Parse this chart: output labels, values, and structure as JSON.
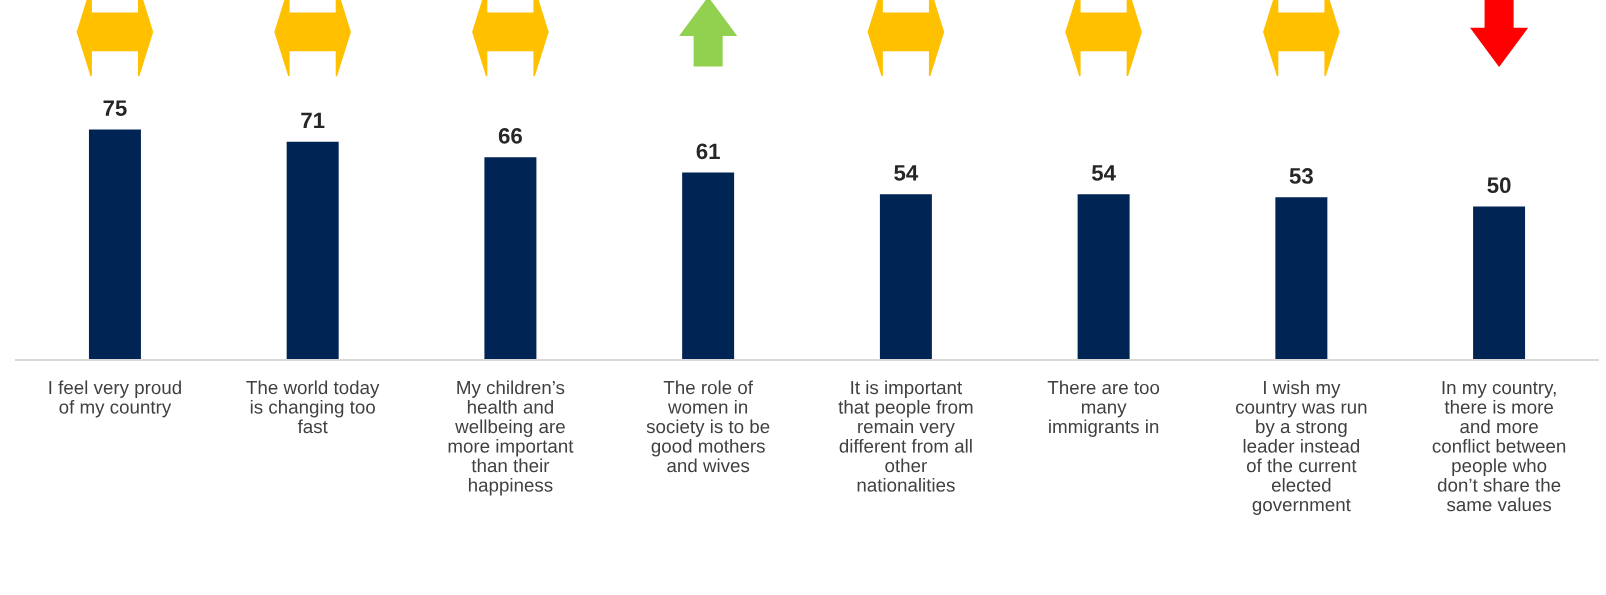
{
  "chart_data": {
    "type": "bar",
    "categories": [
      "I feel very proud\nof my country",
      "The world today\nis changing too\nfast",
      "My children’s\nhealth and\nwellbeing are\nmore important\nthan their\nhappiness",
      "The role of\nwomen in\nsociety is to be\ngood mothers\nand wives",
      "It is important\nthat people from\nremain very\ndifferent from all\nother\nnationalities",
      "There are too\nmany\nimmigrants in",
      "I wish my\ncountry was run\nby a strong\nleader instead\nof the current\nelected\ngovernment",
      "In my country,\nthere is more\nand more\nconflict between\npeople who\ndon’t share the\nsame values"
    ],
    "values": [
      75,
      71,
      66,
      61,
      54,
      54,
      53,
      50
    ],
    "color": "#002454",
    "data_labels": true,
    "grid": false,
    "legend": false
  }
}
